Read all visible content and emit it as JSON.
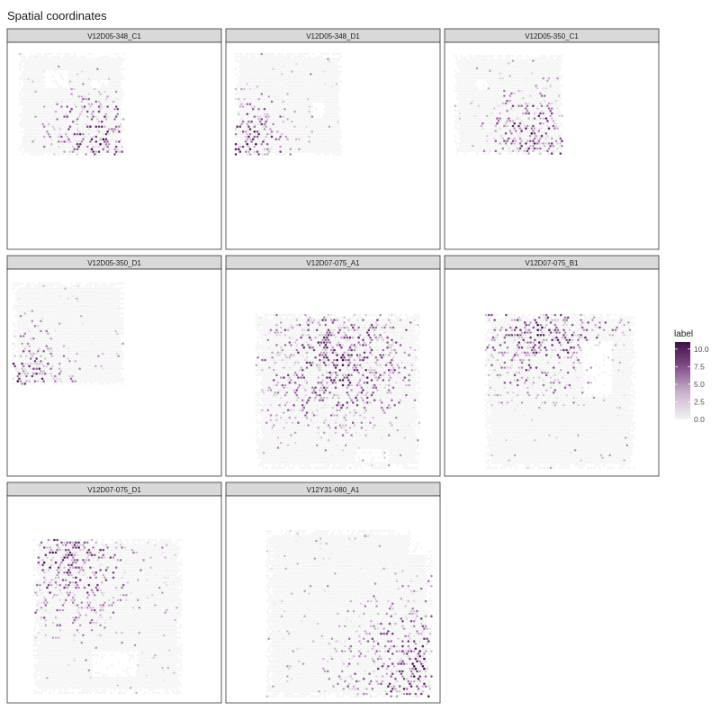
{
  "chart_data": {
    "type": "scatter",
    "title": "Spatial coordinates",
    "facet_layout": "3 columns x 3 rows",
    "facets": [
      {
        "label": "V12D05-348_C1"
      },
      {
        "label": "V12D05-348_D1"
      },
      {
        "label": "V12D05-350_C1"
      },
      {
        "label": "V12D05-350_D1"
      },
      {
        "label": "V12D07-075_A1"
      },
      {
        "label": "V12D07-075_B1"
      },
      {
        "label": "V12D07-075_D1"
      },
      {
        "label": "V12Y31-080_A1"
      }
    ],
    "color_scale": {
      "title": "label",
      "min": 0,
      "max": 11,
      "ticks": [
        "10.0",
        "7.5",
        "5.0",
        "2.5",
        "0.0"
      ],
      "tick_values": [
        10,
        7.5,
        5,
        2.5,
        0
      ],
      "low_color": "#f2f2f2",
      "high_color": "#3f0f47"
    },
    "legend_position": "right",
    "grid": false
  }
}
